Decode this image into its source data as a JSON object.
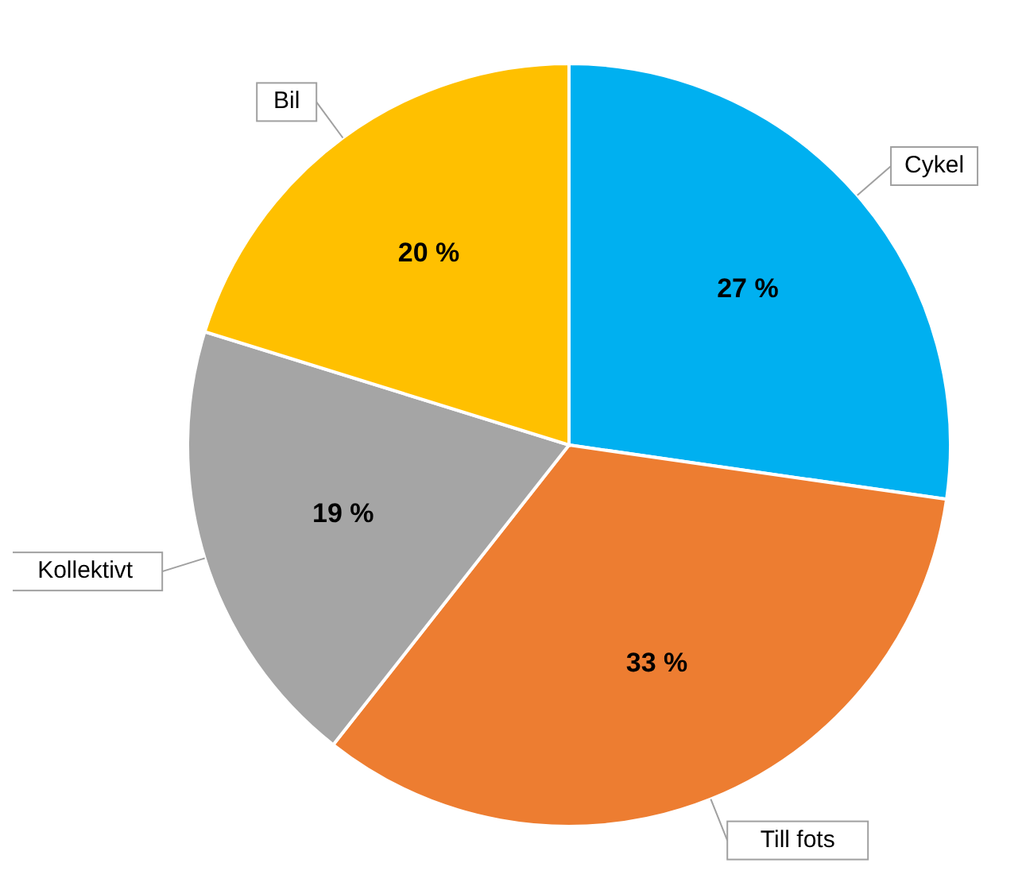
{
  "chart_data": {
    "type": "pie",
    "categories": [
      "Cykel",
      "Till fots",
      "Kollektivt",
      "Bil"
    ],
    "values": [
      27,
      33,
      19,
      20
    ],
    "colors": [
      "#00b0f0",
      "#ed7d31",
      "#a5a5a5",
      "#ffc000"
    ],
    "value_labels": [
      "27 %",
      "33 %",
      "19 %",
      "20 %"
    ]
  }
}
